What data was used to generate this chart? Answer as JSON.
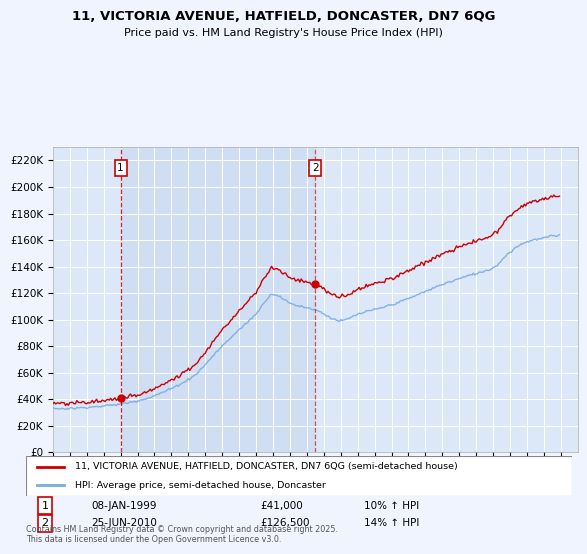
{
  "title1": "11, VICTORIA AVENUE, HATFIELD, DONCASTER, DN7 6QG",
  "title2": "Price paid vs. HM Land Registry's House Price Index (HPI)",
  "bg_color": "#f0f4ff",
  "plot_bg": "#dce8f8",
  "shade_bg": "#c8d8f0",
  "grid_color": "#ffffff",
  "line1_color": "#cc0000",
  "line2_color": "#7aabe0",
  "vline1_color": "#cc0000",
  "vline2_color": "#cc0000",
  "legend1": "11, VICTORIA AVENUE, HATFIELD, DONCASTER, DN7 6QG (semi-detached house)",
  "legend2": "HPI: Average price, semi-detached house, Doncaster",
  "annot1_date": "08-JAN-1999",
  "annot1_price": "£41,000",
  "annot1_hpi": "10% ↑ HPI",
  "annot2_date": "25-JUN-2010",
  "annot2_price": "£126,500",
  "annot2_hpi": "14% ↑ HPI",
  "footer": "Contains HM Land Registry data © Crown copyright and database right 2025.\nThis data is licensed under the Open Government Licence v3.0.",
  "ylim_max": 230000,
  "ylim_min": 0,
  "xlim_min": 1995,
  "xlim_max": 2026
}
